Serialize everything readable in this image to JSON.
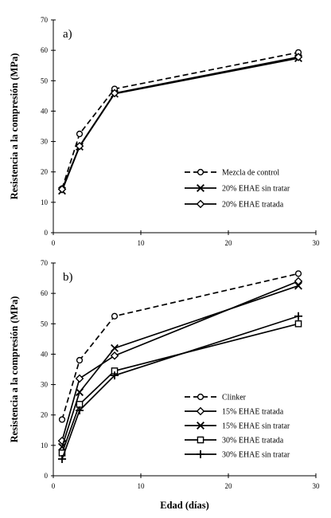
{
  "chart_data": [
    {
      "type": "line",
      "panel_label": "a)",
      "xlabel": "",
      "ylabel": "Resistencia a la compresión (MPa)",
      "xlim": [
        0,
        30
      ],
      "ylim": [
        0,
        70
      ],
      "x_ticks": [
        "0",
        "10",
        "20",
        "30"
      ],
      "y_ticks": [
        "0",
        "10",
        "20",
        "30",
        "40",
        "50",
        "60",
        "70"
      ],
      "grid": false,
      "legend_position": "lower-right",
      "series": [
        {
          "name": "Mezcla de control",
          "marker": "circle",
          "dash": "dashed",
          "x": [
            1,
            3,
            7,
            28
          ],
          "y": [
            14.5,
            32.5,
            47.3,
            59.3
          ]
        },
        {
          "name": "20% EHAE sin tratar",
          "marker": "x",
          "dash": "solid",
          "x": [
            1,
            3,
            7,
            28
          ],
          "y": [
            13.8,
            28.3,
            45.7,
            57.4
          ]
        },
        {
          "name": "20% EHAE tratada",
          "marker": "diamond",
          "dash": "solid",
          "x": [
            1,
            3,
            7,
            28
          ],
          "y": [
            14.3,
            28.5,
            45.9,
            57.8
          ]
        }
      ]
    },
    {
      "type": "line",
      "panel_label": "b)",
      "xlabel": "Edad (días)",
      "ylabel": "Resistencia a la compresión (MPa)",
      "xlim": [
        0,
        30
      ],
      "ylim": [
        0,
        70
      ],
      "x_ticks": [
        "0",
        "10",
        "20",
        "30"
      ],
      "y_ticks": [
        "0",
        "10",
        "20",
        "30",
        "40",
        "50",
        "60",
        "70"
      ],
      "grid": false,
      "legend_position": "lower-right",
      "series": [
        {
          "name": "Clinker",
          "marker": "circle",
          "dash": "dashed",
          "x": [
            1,
            3,
            7,
            28
          ],
          "y": [
            18.5,
            38,
            52.5,
            66.5
          ]
        },
        {
          "name": "15% EHAE tratada",
          "marker": "diamond",
          "dash": "solid",
          "x": [
            1,
            3,
            7,
            28
          ],
          "y": [
            11.5,
            32,
            39.5,
            64
          ]
        },
        {
          "name": "15% EHAE sin tratar",
          "marker": "x",
          "dash": "solid",
          "x": [
            1,
            3,
            7,
            28
          ],
          "y": [
            9.5,
            27.5,
            42,
            62.5
          ]
        },
        {
          "name": "30% EHAE tratada",
          "marker": "square",
          "dash": "solid",
          "x": [
            1,
            3,
            7,
            28
          ],
          "y": [
            7.5,
            23.5,
            34.5,
            50
          ]
        },
        {
          "name": "30% EHAE sin tratar",
          "marker": "plus",
          "dash": "solid",
          "x": [
            1,
            3,
            7,
            28
          ],
          "y": [
            5.5,
            21.5,
            33,
            52.5
          ]
        }
      ]
    }
  ]
}
